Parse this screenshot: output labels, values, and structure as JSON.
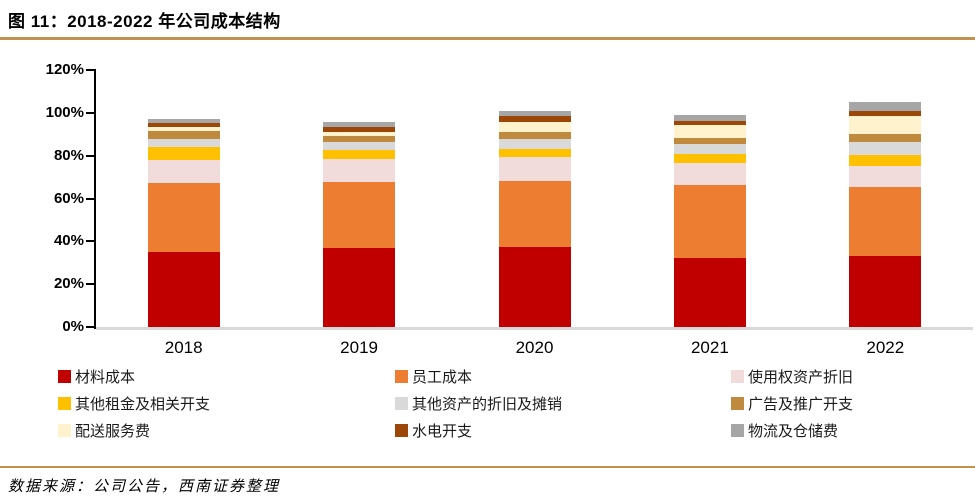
{
  "header": {
    "title": "图 11：2018-2022 年公司成本结构"
  },
  "footer": {
    "source": "数据来源：公司公告，西南证券整理"
  },
  "colors": {
    "accent_line": "#C2914E",
    "axis": "#000000",
    "baseline": "#D9D9D9",
    "background": "#FFFFFF"
  },
  "chart_data": {
    "type": "bar",
    "stacked": true,
    "title": "2018-2022 年公司成本结构",
    "xlabel": "",
    "ylabel": "",
    "ylim": [
      0,
      120
    ],
    "ytick_step": 20,
    "yticks": [
      "0%",
      "20%",
      "40%",
      "60%",
      "80%",
      "100%",
      "120%"
    ],
    "grid": false,
    "legend_position": "bottom",
    "categories": [
      "2018",
      "2019",
      "2020",
      "2021",
      "2022"
    ],
    "series": [
      {
        "name": "材料成本",
        "color": "#C00000",
        "values": [
          35.0,
          36.7,
          37.5,
          32.1,
          33.3
        ]
      },
      {
        "name": "员工成本",
        "color": "#ED7D31",
        "values": [
          32.1,
          31.1,
          30.7,
          34.4,
          31.9
        ]
      },
      {
        "name": "使用权资产折旧",
        "color": "#F2DCDB",
        "values": [
          10.9,
          10.5,
          11.1,
          10.3,
          9.9
        ]
      },
      {
        "name": "其他租金及相关开支",
        "color": "#FFC000",
        "values": [
          6.2,
          4.3,
          3.7,
          3.9,
          5.1
        ]
      },
      {
        "name": "其他资产的折旧及摊销",
        "color": "#D9D9D9",
        "values": [
          3.6,
          4.0,
          5.0,
          4.7,
          6.2
        ]
      },
      {
        "name": "广告及推广开支",
        "color": "#C08A3E",
        "values": [
          3.6,
          2.8,
          2.9,
          3.0,
          3.9
        ]
      },
      {
        "name": "配送服务费",
        "color": "#FFF2CC",
        "values": [
          1.9,
          1.8,
          4.7,
          5.8,
          8.1
        ]
      },
      {
        "name": "水电开支",
        "color": "#9C4708",
        "values": [
          1.9,
          2.2,
          2.8,
          2.0,
          2.5
        ]
      },
      {
        "name": "物流及仓储费",
        "color": "#A6A6A6",
        "values": [
          2.0,
          2.3,
          2.5,
          2.8,
          4.2
        ]
      }
    ]
  }
}
